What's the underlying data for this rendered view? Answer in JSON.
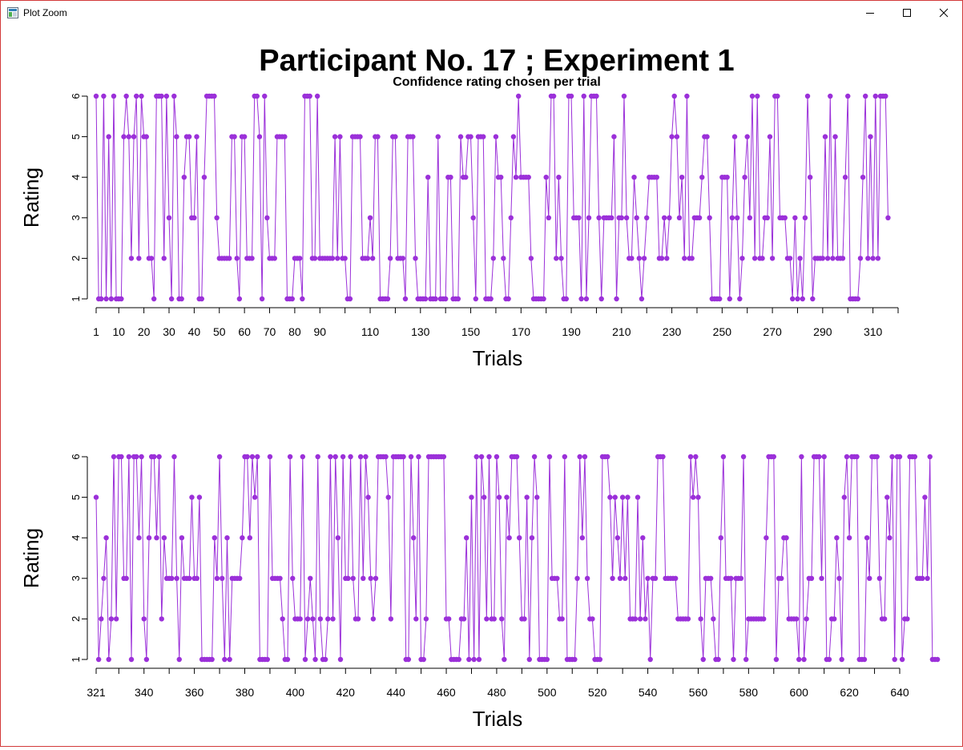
{
  "window": {
    "title": "Plot Zoom"
  },
  "figure": {
    "main_title": "Participant No. 17 ; Experiment 1",
    "subtitle": "Confidence rating chosen per trial",
    "line_color": "#9b30d9"
  },
  "chart_data": [
    {
      "type": "line",
      "subtitle": "Confidence rating chosen per trial",
      "xlabel": "Trials",
      "ylabel": "Rating",
      "xlim": [
        1,
        320
      ],
      "ylim": [
        1,
        6
      ],
      "x_tick_labels": [
        "1",
        "10",
        "20",
        "30",
        "40",
        "50",
        "60",
        "70",
        "80",
        "90",
        "110",
        "130",
        "150",
        "170",
        "190",
        "210",
        "230",
        "250",
        "270",
        "290",
        "310"
      ],
      "y_tick_labels": [
        "1",
        "2",
        "3",
        "4",
        "5",
        "6"
      ],
      "x_start": 1,
      "values": [
        6,
        1,
        1,
        6,
        1,
        5,
        1,
        6,
        1,
        1,
        1,
        5,
        6,
        5,
        2,
        5,
        6,
        2,
        6,
        5,
        5,
        2,
        2,
        1,
        6,
        6,
        6,
        2,
        6,
        3,
        1,
        6,
        5,
        1,
        1,
        4,
        5,
        5,
        3,
        3,
        5,
        1,
        1,
        4,
        6,
        6,
        6,
        6,
        3,
        2,
        2,
        2,
        2,
        2,
        5,
        5,
        2,
        1,
        5,
        5,
        2,
        2,
        2,
        6,
        6,
        5,
        1,
        6,
        3,
        2,
        2,
        2,
        5,
        5,
        5,
        5,
        1,
        1,
        1,
        2,
        2,
        2,
        1,
        6,
        6,
        6,
        2,
        2,
        6,
        2,
        2,
        2,
        2,
        2,
        2,
        5,
        2,
        5,
        2,
        2,
        1,
        1,
        5,
        5,
        5,
        5,
        2,
        2,
        2,
        3,
        2,
        5,
        5,
        1,
        1,
        1,
        1,
        2,
        5,
        5,
        2,
        2,
        2,
        1,
        5,
        5,
        5,
        2,
        1,
        1,
        1,
        1,
        4,
        1,
        1,
        1,
        5,
        1,
        1,
        1,
        4,
        4,
        1,
        1,
        1,
        5,
        4,
        4,
        5,
        5,
        3,
        1,
        5,
        5,
        5,
        1,
        1,
        1,
        2,
        5,
        4,
        4,
        2,
        1,
        1,
        3,
        5,
        4,
        6,
        4,
        4,
        4,
        4,
        2,
        1,
        1,
        1,
        1,
        1,
        4,
        3,
        6,
        6,
        2,
        4,
        2,
        1,
        1,
        6,
        6,
        3,
        3,
        3,
        1,
        6,
        1,
        3,
        6,
        6,
        6,
        3,
        1,
        3,
        3,
        3,
        3,
        5,
        1,
        3,
        3,
        6,
        3,
        2,
        2,
        4,
        3,
        2,
        1,
        2,
        3,
        4,
        4,
        4,
        4,
        2,
        2,
        3,
        2,
        3,
        5,
        6,
        5,
        3,
        4,
        2,
        6,
        2,
        2,
        3,
        3,
        3,
        4,
        5,
        5,
        3,
        1,
        1,
        1,
        1,
        4,
        4,
        4,
        1,
        3,
        5,
        3,
        1,
        2,
        4,
        5,
        3,
        6,
        2,
        6,
        2,
        2,
        3,
        3,
        5,
        2,
        6,
        6,
        3,
        3,
        3,
        2,
        2,
        1,
        3,
        1,
        2,
        1,
        3,
        6,
        4,
        1,
        2,
        2,
        2,
        2,
        5,
        2,
        6,
        2,
        5,
        2,
        2,
        2,
        4,
        6,
        1,
        1,
        1,
        1,
        2,
        4,
        6,
        2,
        5,
        2,
        6,
        2,
        6,
        6,
        6,
        3
      ]
    },
    {
      "type": "line",
      "xlabel": "Trials",
      "ylabel": "Rating",
      "xlim": [
        321,
        640
      ],
      "ylim": [
        1,
        6
      ],
      "x_tick_labels": [
        "321",
        "340",
        "360",
        "380",
        "400",
        "420",
        "440",
        "460",
        "480",
        "500",
        "520",
        "540",
        "560",
        "580",
        "600",
        "620",
        "640"
      ],
      "y_tick_labels": [
        "1",
        "2",
        "3",
        "4",
        "5",
        "6"
      ],
      "x_start": 321,
      "values": [
        5,
        1,
        2,
        3,
        4,
        1,
        2,
        6,
        2,
        6,
        6,
        3,
        3,
        6,
        1,
        6,
        6,
        4,
        6,
        2,
        1,
        4,
        6,
        6,
        4,
        6,
        2,
        4,
        3,
        3,
        3,
        6,
        3,
        1,
        4,
        3,
        3,
        3,
        5,
        3,
        3,
        5,
        1,
        1,
        1,
        1,
        1,
        4,
        3,
        6,
        3,
        1,
        4,
        1,
        3,
        3,
        3,
        3,
        4,
        6,
        6,
        4,
        6,
        5,
        6,
        1,
        1,
        1,
        1,
        6,
        3,
        3,
        3,
        3,
        2,
        1,
        1,
        6,
        3,
        2,
        2,
        2,
        6,
        1,
        2,
        3,
        2,
        1,
        6,
        2,
        1,
        1,
        2,
        6,
        2,
        6,
        4,
        1,
        6,
        3,
        3,
        6,
        3,
        2,
        2,
        6,
        3,
        6,
        5,
        3,
        2,
        3,
        6,
        6,
        6,
        6,
        5,
        2,
        6,
        6,
        6,
        6,
        6,
        1,
        1,
        6,
        4,
        2,
        6,
        1,
        1,
        2,
        6,
        6,
        6,
        6,
        6,
        6,
        6,
        2,
        2,
        1,
        1,
        1,
        1,
        2,
        2,
        4,
        1,
        5,
        1,
        6,
        1,
        6,
        5,
        2,
        6,
        2,
        2,
        6,
        5,
        2,
        1,
        5,
        4,
        6,
        6,
        6,
        4,
        2,
        2,
        5,
        1,
        4,
        6,
        5,
        1,
        1,
        1,
        1,
        6,
        3,
        3,
        3,
        2,
        2,
        6,
        1,
        1,
        1,
        1,
        3,
        6,
        4,
        6,
        3,
        2,
        2,
        1,
        1,
        1,
        6,
        6,
        6,
        5,
        3,
        5,
        4,
        3,
        5,
        3,
        5,
        2,
        2,
        2,
        5,
        2,
        4,
        2,
        3,
        1,
        3,
        3,
        6,
        6,
        6,
        3,
        3,
        3,
        3,
        3,
        2,
        2,
        2,
        2,
        2,
        6,
        5,
        6,
        5,
        2,
        1,
        3,
        3,
        3,
        2,
        1,
        1,
        4,
        6,
        3,
        3,
        3,
        1,
        3,
        3,
        3,
        6,
        1,
        2,
        2,
        2,
        2,
        2,
        2,
        2,
        4,
        6,
        6,
        6,
        1,
        3,
        3,
        4,
        4,
        2,
        2,
        2,
        2,
        1,
        6,
        1,
        2,
        3,
        3,
        6,
        6,
        6,
        3,
        6,
        1,
        1,
        2,
        2,
        4,
        3,
        1,
        5,
        6,
        4,
        6,
        6,
        6,
        1,
        1,
        1,
        4,
        3,
        6,
        6,
        6,
        3,
        2,
        2,
        5,
        4,
        6,
        1,
        6,
        6,
        1,
        2,
        2,
        6,
        6,
        6,
        3,
        3,
        3,
        5,
        3,
        6,
        1,
        1,
        1
      ]
    }
  ]
}
